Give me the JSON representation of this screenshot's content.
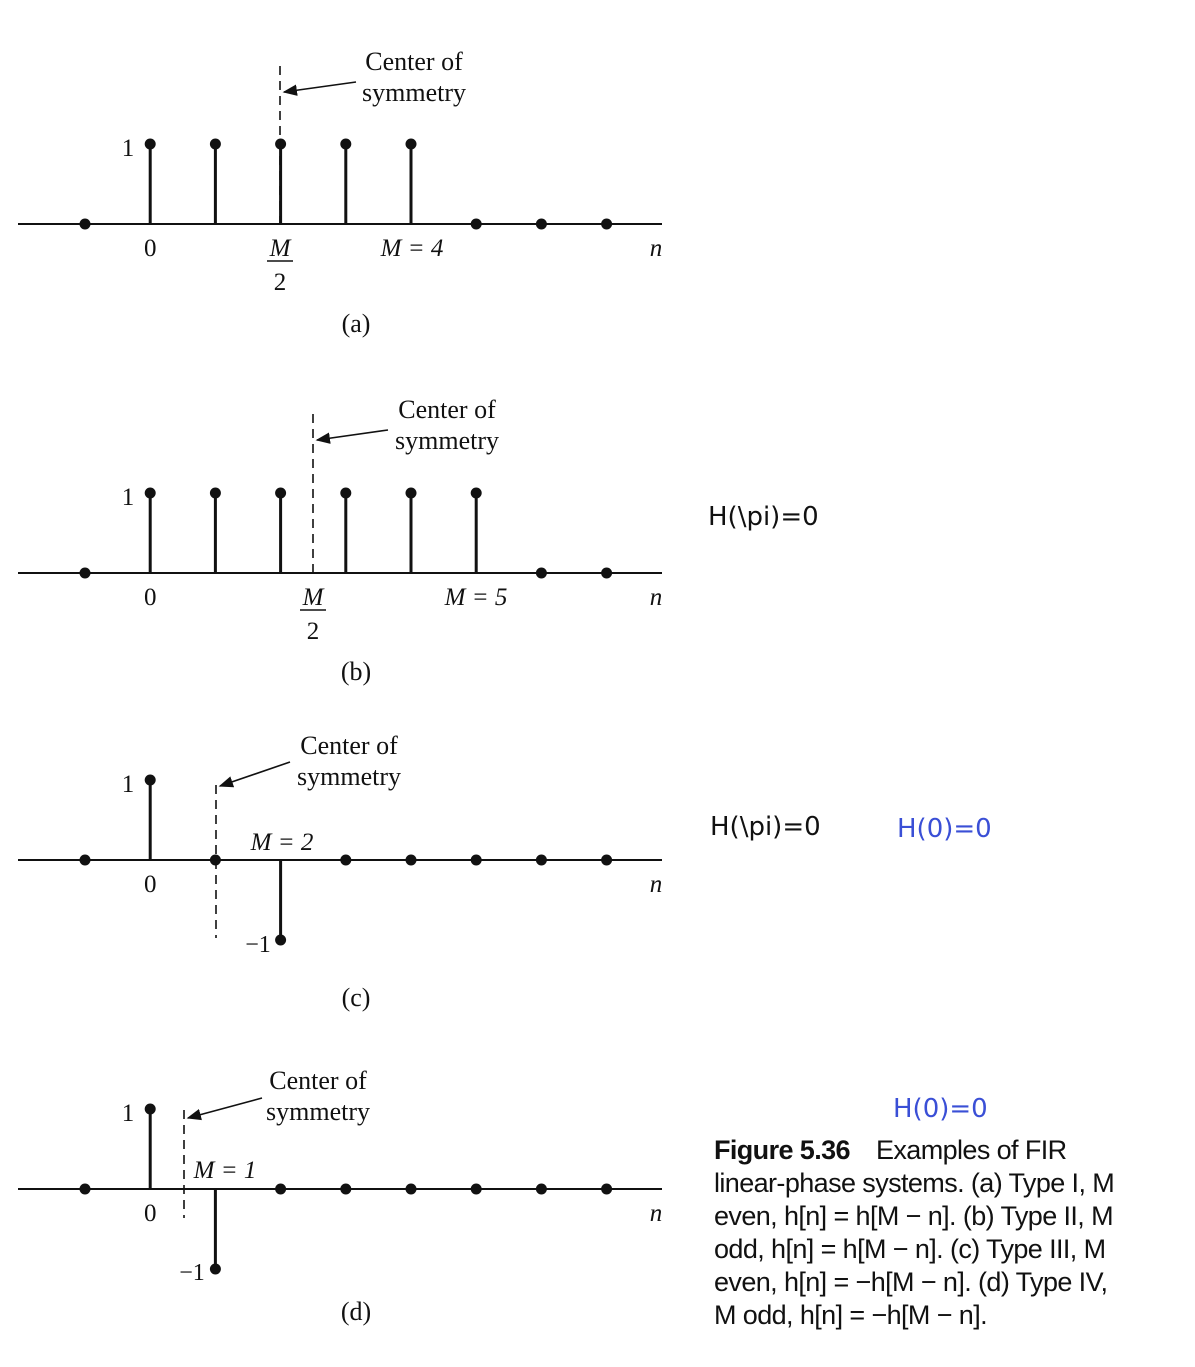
{
  "panels": [
    {
      "id": "a",
      "label": "(a)",
      "annotation": [
        "Center of",
        "symmetry"
      ],
      "y_one": "1",
      "y_neg_one": "",
      "origin_label": "0",
      "center_label_num": "M",
      "center_label_den": "2",
      "m_label": "M = 4",
      "axis_label": "n",
      "samples": [
        0,
        1,
        1,
        1,
        1,
        1,
        0,
        0,
        0
      ]
    },
    {
      "id": "b",
      "label": "(b)",
      "annotation": [
        "Center of",
        "symmetry"
      ],
      "y_one": "1",
      "y_neg_one": "",
      "origin_label": "0",
      "center_label_num": "M",
      "center_label_den": "2",
      "m_label": "M = 5",
      "axis_label": "n",
      "samples": [
        0,
        1,
        1,
        1,
        1,
        1,
        1,
        0,
        0
      ]
    },
    {
      "id": "c",
      "label": "(c)",
      "annotation": [
        "Center of",
        "symmetry"
      ],
      "y_one": "1",
      "y_neg_one": "−1",
      "origin_label": "0",
      "center_label_num": "",
      "center_label_den": "",
      "m_label": "M = 2",
      "axis_label": "n",
      "samples": [
        0,
        1,
        0,
        -1,
        0,
        0,
        0,
        0,
        0
      ]
    },
    {
      "id": "d",
      "label": "(d)",
      "annotation": [
        "Center of",
        "symmetry"
      ],
      "y_one": "1",
      "y_neg_one": "−1",
      "origin_label": "0",
      "center_label_num": "",
      "center_label_den": "",
      "m_label": "M = 1",
      "axis_label": "n",
      "samples": [
        0,
        1,
        -1,
        0,
        0,
        0,
        0,
        0,
        0
      ]
    }
  ],
  "notes": {
    "b_pi": "H(\\pi)=0",
    "c_pi": "H(\\pi)=0",
    "c_zero": "H(0)=0",
    "d_zero": "H(0)=0"
  },
  "caption": {
    "figure_label": "Figure 5.36",
    "lines": [
      "Examples of FIR",
      "linear-phase systems. (a) Type I, M",
      "even, h[n] = h[M − n]. (b) Type II, M",
      "odd, h[n] = h[M − n]. (c) Type III, M",
      "even, h[n] = −h[M − n]. (d) Type IV,",
      "M odd, h[n] = −h[M − n]."
    ]
  },
  "colors": {
    "ink": "#111111",
    "note_blue": "#3a4fd6"
  }
}
